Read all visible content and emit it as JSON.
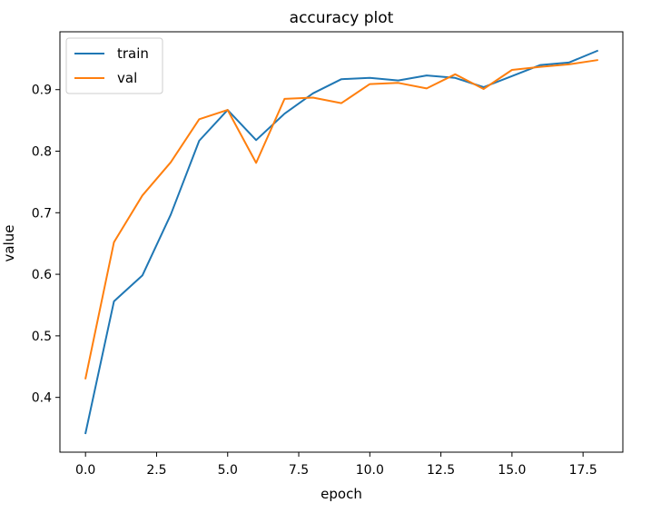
{
  "chart_data": {
    "type": "line",
    "title": "accuracy plot",
    "xlabel": "epoch",
    "ylabel": "value",
    "xlim": [
      -0.9,
      18.9
    ],
    "ylim": [
      0.311,
      0.994
    ],
    "x_ticks": [
      0.0,
      2.5,
      5.0,
      7.5,
      10.0,
      12.5,
      15.0,
      17.5
    ],
    "x_tick_labels": [
      "0.0",
      "2.5",
      "5.0",
      "7.5",
      "10.0",
      "12.5",
      "15.0",
      "17.5"
    ],
    "y_ticks": [
      0.4,
      0.5,
      0.6,
      0.7,
      0.8,
      0.9
    ],
    "y_tick_labels": [
      "0.4",
      "0.5",
      "0.6",
      "0.7",
      "0.8",
      "0.9"
    ],
    "grid": false,
    "legend": "top-left",
    "x": [
      0,
      1,
      2,
      3,
      4,
      5,
      6,
      7,
      8,
      9,
      10,
      11,
      12,
      13,
      14,
      15,
      16,
      17,
      18
    ],
    "series": [
      {
        "name": "train",
        "color": "#1f77b4",
        "values": [
          0.342,
          0.556,
          0.598,
          0.697,
          0.817,
          0.867,
          0.818,
          0.861,
          0.894,
          0.917,
          0.919,
          0.915,
          0.923,
          0.919,
          0.904,
          0.922,
          0.94,
          0.944,
          0.963
        ]
      },
      {
        "name": "val",
        "color": "#ff7f0e",
        "values": [
          0.431,
          0.652,
          0.728,
          0.782,
          0.852,
          0.867,
          0.781,
          0.885,
          0.887,
          0.878,
          0.909,
          0.911,
          0.902,
          0.925,
          0.901,
          0.932,
          0.937,
          0.941,
          0.948
        ]
      }
    ]
  }
}
